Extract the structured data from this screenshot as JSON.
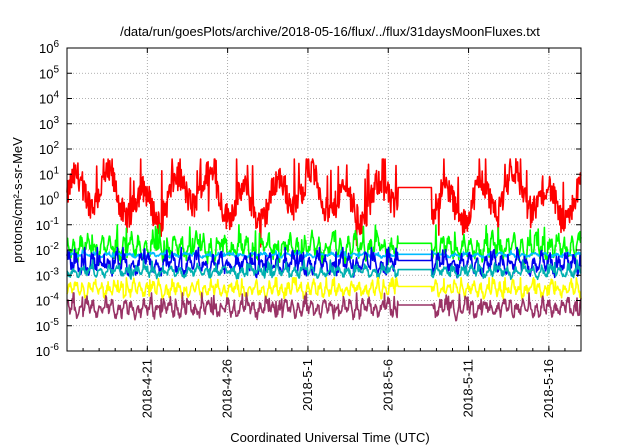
{
  "chart_data": {
    "type": "line",
    "title": "/data/run/goesPlots/archive/2018-05-16/flux/../flux/31daysMoonFluxes.txt",
    "xlabel": "Coordinated Universal Time (UTC)",
    "ylabel": "protons/cm²-s-sr-MeV",
    "y_scale": "log",
    "ylim_exponents": [
      -6,
      6
    ],
    "y_tick_exponents": [
      -6,
      -5,
      -4,
      -3,
      -2,
      -1,
      0,
      1,
      2,
      3,
      4,
      5,
      6
    ],
    "y_tick_base": "10",
    "xlim_days": [
      "2018-04-16",
      "2018-05-18"
    ],
    "x_ticks": [
      "2018-4-21",
      "2018-4-26",
      "2018-5-1",
      "2018-5-6",
      "2018-5-11",
      "2018-5-16"
    ],
    "grid": true,
    "legend": "none",
    "gap": {
      "start_day": 20.6,
      "end_day": 22.7
    },
    "series": [
      {
        "color": "#ff0000",
        "log_level": 0.1,
        "log_amplitude": 1.25,
        "period_days": 2.1,
        "spike_log_max": 1.6
      },
      {
        "color": "#00ff00",
        "log_level": -1.9,
        "log_amplitude": 0.55,
        "period_days": 0.45,
        "spike_log_max": -1.0
      },
      {
        "color": "#00bbff",
        "log_level": -2.2,
        "log_amplitude": 0.1,
        "period_days": 0.7,
        "spike_log_max": -2.0
      },
      {
        "color": "#0000ee",
        "log_level": -2.55,
        "log_amplitude": 0.45,
        "period_days": 0.5,
        "spike_log_max": -1.9
      },
      {
        "color": "#00b0b0",
        "log_level": -2.85,
        "log_amplitude": 0.25,
        "period_days": 0.55,
        "spike_log_max": -2.4
      },
      {
        "color": "#ffff00",
        "log_level": -3.55,
        "log_amplitude": 0.35,
        "period_days": 0.4,
        "spike_log_max": -3.1
      },
      {
        "color": "#993366",
        "log_level": -4.3,
        "log_amplitude": 0.4,
        "period_days": 0.4,
        "spike_log_max": -3.7
      }
    ]
  }
}
